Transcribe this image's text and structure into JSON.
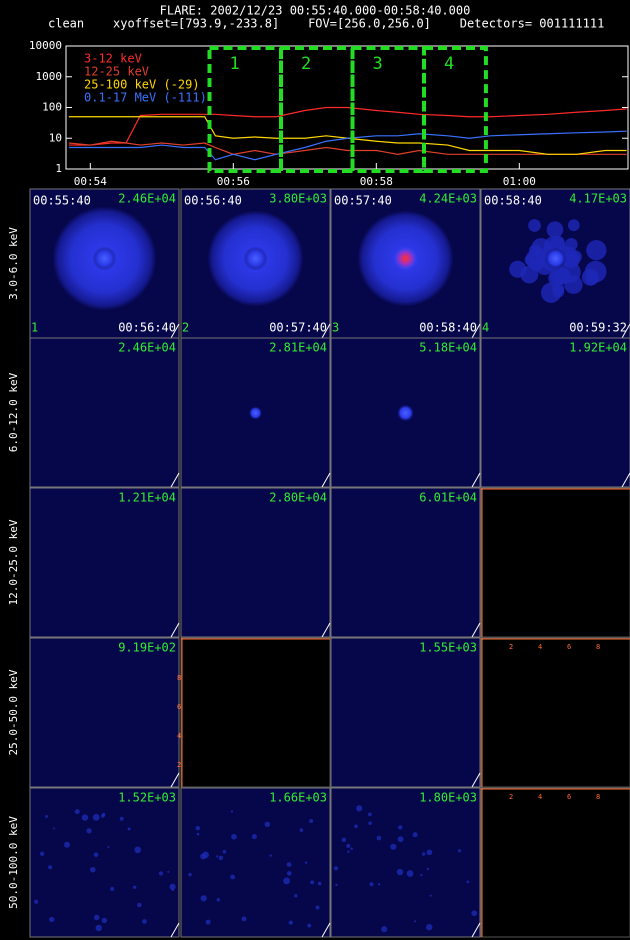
{
  "header": {
    "title": "FLARE: 2002/12/23 00:55:40.000-00:58:40.000",
    "subtitle": "clean    xyoffset=[793.9,-233.8]    FOV=[256.0,256.0]    Detectors= 001111111"
  },
  "chart_data": {
    "type": "line",
    "log_y": true,
    "x": [
      53.7,
      54.0,
      54.3,
      54.5,
      54.7,
      55.0,
      55.3,
      55.6,
      55.75,
      56.0,
      56.3,
      56.6,
      57.0,
      57.3,
      57.6,
      58.0,
      58.3,
      58.6,
      59.0,
      59.3,
      59.6,
      60.0,
      60.4,
      60.8,
      61.2,
      61.5
    ],
    "series": [
      {
        "name": "3-12 keV",
        "color": "#ff2a2a",
        "values": [
          6,
          6,
          7,
          7,
          55,
          60,
          60,
          60,
          60,
          55,
          50,
          50,
          80,
          100,
          100,
          80,
          70,
          60,
          55,
          50,
          50,
          55,
          60,
          70,
          80,
          90
        ]
      },
      {
        "name": "12-25 keV",
        "color": "#e0402a",
        "values": [
          7,
          6,
          8,
          7,
          6,
          7,
          6,
          7,
          5,
          3,
          4,
          3,
          4,
          5,
          4,
          4,
          3,
          4,
          3,
          3,
          3,
          3,
          3,
          3,
          3,
          3
        ]
      },
      {
        "name": "25-100 keV (-29)",
        "color": "#ffd700",
        "values": [
          50,
          50,
          50,
          50,
          50,
          50,
          50,
          50,
          12,
          10,
          11,
          10,
          10,
          12,
          10,
          8,
          7,
          7,
          6,
          4,
          4,
          4,
          3,
          3,
          4,
          4
        ]
      },
      {
        "name": "0.1-17 MeV (-111)",
        "color": "#3a72ff",
        "values": [
          5,
          5,
          5,
          5,
          5,
          6,
          5,
          5,
          2,
          3,
          2,
          3,
          5,
          8,
          10,
          12,
          12,
          14,
          12,
          10,
          12,
          13,
          14,
          15,
          16,
          17
        ]
      }
    ],
    "xlim": [
      53.66,
      61.52
    ],
    "ylim": [
      1,
      10000
    ],
    "yticks": [
      1,
      10,
      100,
      1000,
      10000
    ],
    "xticks": [
      {
        "value": 54,
        "label": "00:54"
      },
      {
        "value": 56,
        "label": "00:56"
      },
      {
        "value": 58,
        "label": "00:58"
      },
      {
        "value": 60,
        "label": "01:00"
      }
    ],
    "intervals": [
      {
        "label": "1",
        "start": 55.667,
        "end": 56.667
      },
      {
        "label": "2",
        "start": 56.667,
        "end": 57.667
      },
      {
        "label": "3",
        "start": 57.667,
        "end": 58.667
      },
      {
        "label": "4",
        "start": 58.667,
        "end": 59.533
      }
    ],
    "interval_color": "#22dd22"
  },
  "grid": {
    "row_labels": [
      "3.0-6.0 keV",
      "6.0-12.0 keV",
      "12.0-25.0 keV",
      "25.0-50.0 keV",
      "50.0-100.0 keV"
    ],
    "empty_ticks": [
      "2",
      "4",
      "6",
      "8"
    ],
    "rows": [
      [
        {
          "peak": "2.46E+04",
          "start": "00:55:40",
          "end": "00:56:40",
          "index": "1"
        },
        {
          "peak": "3.80E+03",
          "start": "00:56:40",
          "end": "00:57:40",
          "index": "2"
        },
        {
          "peak": "4.24E+03",
          "start": "00:57:40",
          "end": "00:58:40",
          "index": "3"
        },
        {
          "peak": "4.17E+03",
          "start": "00:58:40",
          "end": "00:59:32",
          "index": "4"
        }
      ],
      [
        {
          "peak": "2.46E+04"
        },
        {
          "peak": "2.81E+04"
        },
        {
          "peak": "5.18E+04"
        },
        {
          "peak": "1.92E+04"
        }
      ],
      [
        {
          "peak": "1.21E+04"
        },
        {
          "peak": "2.80E+04"
        },
        {
          "peak": "6.01E+04"
        },
        null
      ],
      [
        {
          "peak": "9.19E+02"
        },
        null,
        {
          "peak": "1.55E+03"
        },
        null
      ],
      [
        {
          "peak": "1.52E+03"
        },
        {
          "peak": "1.66E+03"
        },
        {
          "peak": "1.80E+03"
        },
        null
      ]
    ]
  }
}
